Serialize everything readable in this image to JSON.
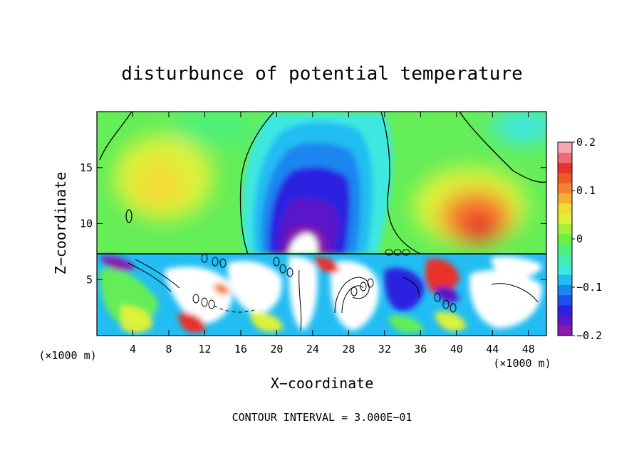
{
  "chart_data": {
    "type": "heatmap",
    "title": "disturbunce of potential temperature",
    "xlabel": "X−coordinate",
    "ylabel": "Z−coordinate",
    "x_unit_left": "(×1000 m)",
    "x_unit_right": "(×1000 m)",
    "footer": "CONTOUR INTERVAL = 3.000E−01",
    "xlim": [
      0,
      50
    ],
    "ylim": [
      0,
      20
    ],
    "x_ticks": [
      4,
      8,
      12,
      16,
      20,
      24,
      28,
      32,
      36,
      40,
      44,
      48
    ],
    "y_ticks": [
      5,
      10,
      15
    ],
    "colorbar": {
      "range": [
        -0.2,
        0.2
      ],
      "tick_values": [
        0.2,
        0.1,
        0,
        -0.1,
        -0.2
      ],
      "tick_labels": [
        "0.2",
        "0.1",
        "0",
        "−0.1",
        "−0.2"
      ],
      "colors": [
        "#8a1aa8",
        "#5a18c8",
        "#2a22e0",
        "#1e50f0",
        "#1a86f0",
        "#22bdf2",
        "#3ee8e0",
        "#44eeb0",
        "#4cf07a",
        "#6cf044",
        "#a6f03a",
        "#dcf23a",
        "#f2dc38",
        "#f5b032",
        "#f5822e",
        "#f05a2a",
        "#e8322c",
        "#f06a78",
        "#f8a8b4"
      ]
    },
    "features": [
      {
        "name": "upper-negative-anomaly",
        "x_center": 22,
        "z_center": 12,
        "min_value": -0.2
      },
      {
        "name": "upper-positive-anomaly",
        "x_center": 42,
        "z_center": 10.5,
        "max_value": 0.15
      },
      {
        "name": "turbulent-lower-layer",
        "z_top": 7.3
      }
    ]
  }
}
